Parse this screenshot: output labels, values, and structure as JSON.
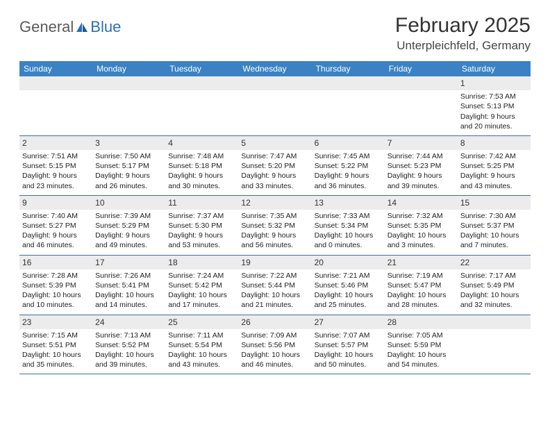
{
  "colors": {
    "header_bg": "#3a82c4",
    "header_text": "#ffffff",
    "daynum_bg": "#ececec",
    "row_border": "#3a6fa8",
    "body_text": "#222222",
    "logo_gray": "#5a5a5a",
    "logo_blue": "#2a6fb5"
  },
  "logo": {
    "text1": "General",
    "text2": "Blue"
  },
  "title": "February 2025",
  "location": "Unterpleichfeld, Germany",
  "weekdays": [
    "Sunday",
    "Monday",
    "Tuesday",
    "Wednesday",
    "Thursday",
    "Friday",
    "Saturday"
  ],
  "weeks": [
    [
      {
        "n": "",
        "sr": "",
        "ss": "",
        "dl": ""
      },
      {
        "n": "",
        "sr": "",
        "ss": "",
        "dl": ""
      },
      {
        "n": "",
        "sr": "",
        "ss": "",
        "dl": ""
      },
      {
        "n": "",
        "sr": "",
        "ss": "",
        "dl": ""
      },
      {
        "n": "",
        "sr": "",
        "ss": "",
        "dl": ""
      },
      {
        "n": "",
        "sr": "",
        "ss": "",
        "dl": ""
      },
      {
        "n": "1",
        "sr": "Sunrise: 7:53 AM",
        "ss": "Sunset: 5:13 PM",
        "dl": "Daylight: 9 hours and 20 minutes."
      }
    ],
    [
      {
        "n": "2",
        "sr": "Sunrise: 7:51 AM",
        "ss": "Sunset: 5:15 PM",
        "dl": "Daylight: 9 hours and 23 minutes."
      },
      {
        "n": "3",
        "sr": "Sunrise: 7:50 AM",
        "ss": "Sunset: 5:17 PM",
        "dl": "Daylight: 9 hours and 26 minutes."
      },
      {
        "n": "4",
        "sr": "Sunrise: 7:48 AM",
        "ss": "Sunset: 5:18 PM",
        "dl": "Daylight: 9 hours and 30 minutes."
      },
      {
        "n": "5",
        "sr": "Sunrise: 7:47 AM",
        "ss": "Sunset: 5:20 PM",
        "dl": "Daylight: 9 hours and 33 minutes."
      },
      {
        "n": "6",
        "sr": "Sunrise: 7:45 AM",
        "ss": "Sunset: 5:22 PM",
        "dl": "Daylight: 9 hours and 36 minutes."
      },
      {
        "n": "7",
        "sr": "Sunrise: 7:44 AM",
        "ss": "Sunset: 5:23 PM",
        "dl": "Daylight: 9 hours and 39 minutes."
      },
      {
        "n": "8",
        "sr": "Sunrise: 7:42 AM",
        "ss": "Sunset: 5:25 PM",
        "dl": "Daylight: 9 hours and 43 minutes."
      }
    ],
    [
      {
        "n": "9",
        "sr": "Sunrise: 7:40 AM",
        "ss": "Sunset: 5:27 PM",
        "dl": "Daylight: 9 hours and 46 minutes."
      },
      {
        "n": "10",
        "sr": "Sunrise: 7:39 AM",
        "ss": "Sunset: 5:29 PM",
        "dl": "Daylight: 9 hours and 49 minutes."
      },
      {
        "n": "11",
        "sr": "Sunrise: 7:37 AM",
        "ss": "Sunset: 5:30 PM",
        "dl": "Daylight: 9 hours and 53 minutes."
      },
      {
        "n": "12",
        "sr": "Sunrise: 7:35 AM",
        "ss": "Sunset: 5:32 PM",
        "dl": "Daylight: 9 hours and 56 minutes."
      },
      {
        "n": "13",
        "sr": "Sunrise: 7:33 AM",
        "ss": "Sunset: 5:34 PM",
        "dl": "Daylight: 10 hours and 0 minutes."
      },
      {
        "n": "14",
        "sr": "Sunrise: 7:32 AM",
        "ss": "Sunset: 5:35 PM",
        "dl": "Daylight: 10 hours and 3 minutes."
      },
      {
        "n": "15",
        "sr": "Sunrise: 7:30 AM",
        "ss": "Sunset: 5:37 PM",
        "dl": "Daylight: 10 hours and 7 minutes."
      }
    ],
    [
      {
        "n": "16",
        "sr": "Sunrise: 7:28 AM",
        "ss": "Sunset: 5:39 PM",
        "dl": "Daylight: 10 hours and 10 minutes."
      },
      {
        "n": "17",
        "sr": "Sunrise: 7:26 AM",
        "ss": "Sunset: 5:41 PM",
        "dl": "Daylight: 10 hours and 14 minutes."
      },
      {
        "n": "18",
        "sr": "Sunrise: 7:24 AM",
        "ss": "Sunset: 5:42 PM",
        "dl": "Daylight: 10 hours and 17 minutes."
      },
      {
        "n": "19",
        "sr": "Sunrise: 7:22 AM",
        "ss": "Sunset: 5:44 PM",
        "dl": "Daylight: 10 hours and 21 minutes."
      },
      {
        "n": "20",
        "sr": "Sunrise: 7:21 AM",
        "ss": "Sunset: 5:46 PM",
        "dl": "Daylight: 10 hours and 25 minutes."
      },
      {
        "n": "21",
        "sr": "Sunrise: 7:19 AM",
        "ss": "Sunset: 5:47 PM",
        "dl": "Daylight: 10 hours and 28 minutes."
      },
      {
        "n": "22",
        "sr": "Sunrise: 7:17 AM",
        "ss": "Sunset: 5:49 PM",
        "dl": "Daylight: 10 hours and 32 minutes."
      }
    ],
    [
      {
        "n": "23",
        "sr": "Sunrise: 7:15 AM",
        "ss": "Sunset: 5:51 PM",
        "dl": "Daylight: 10 hours and 35 minutes."
      },
      {
        "n": "24",
        "sr": "Sunrise: 7:13 AM",
        "ss": "Sunset: 5:52 PM",
        "dl": "Daylight: 10 hours and 39 minutes."
      },
      {
        "n": "25",
        "sr": "Sunrise: 7:11 AM",
        "ss": "Sunset: 5:54 PM",
        "dl": "Daylight: 10 hours and 43 minutes."
      },
      {
        "n": "26",
        "sr": "Sunrise: 7:09 AM",
        "ss": "Sunset: 5:56 PM",
        "dl": "Daylight: 10 hours and 46 minutes."
      },
      {
        "n": "27",
        "sr": "Sunrise: 7:07 AM",
        "ss": "Sunset: 5:57 PM",
        "dl": "Daylight: 10 hours and 50 minutes."
      },
      {
        "n": "28",
        "sr": "Sunrise: 7:05 AM",
        "ss": "Sunset: 5:59 PM",
        "dl": "Daylight: 10 hours and 54 minutes."
      },
      {
        "n": "",
        "sr": "",
        "ss": "",
        "dl": ""
      }
    ]
  ]
}
